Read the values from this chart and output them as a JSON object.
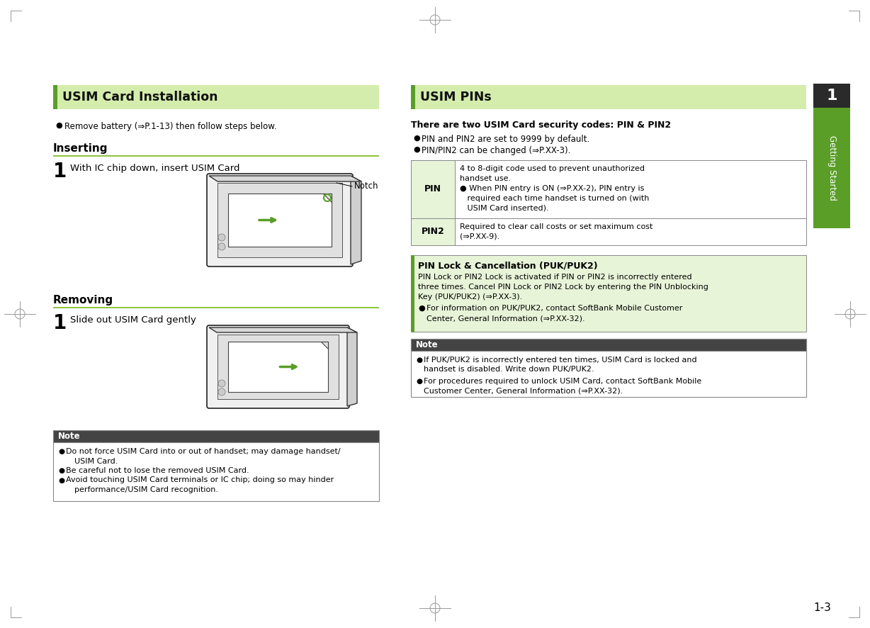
{
  "page_bg": "#ffffff",
  "header_green_light": "#d4edac",
  "header_green_dark": "#5a9e28",
  "note_bg": "#ffffff",
  "note_title_bg": "#4a4a4a",
  "note_title_fg": "#ffffff",
  "table_border": "#888888",
  "pin_row_bg": "#e8f4d8",
  "pin_lock_bg": "#e8f4d8",
  "pin_lock_bar": "#5a9e28",
  "tab_green": "#333333",
  "tab_text": "#ffffff",
  "underline_green": "#8dc63f",
  "text_black": "#000000",
  "left_title": "USIM Card Installation",
  "right_title": "USIM PINs",
  "remove_battery_text": "Remove battery (⇒P.1-13) then follow steps below.",
  "inserting_label": "Inserting",
  "inserting_step": "With IC chip down, insert USIM Card",
  "notch_label": "Notch",
  "removing_label": "Removing",
  "removing_step": "Slide out USIM Card gently",
  "note_title": "Note",
  "note_items": [
    "Do not force USIM Card into or out of handset; may damage handset/\nUSIM Card.",
    "Be careful not to lose the removed USIM Card.",
    "Avoid touching USIM Card terminals or IC chip; doing so may hinder\nperformance/USIM Card recognition."
  ],
  "right_bold_text": "There are two USIM Card security codes: PIN & PIN2",
  "right_bullet1": "PIN and PIN2 are set to 9999 by default.",
  "right_bullet2": "PIN/PIN2 can be changed (⇒P.XX-3).",
  "pin_label": "PIN",
  "pin_desc_line1": "4 to 8-digit code used to prevent unauthorized",
  "pin_desc_line2": "handset use.",
  "pin_desc_line3": "● When PIN entry is ON (⇒P.XX-2), PIN entry is",
  "pin_desc_line4": "   required each time handset is turned on (with",
  "pin_desc_line5": "   USIM Card inserted).",
  "pin2_label": "PIN2",
  "pin2_desc_line1": "Required to clear call costs or set maximum cost",
  "pin2_desc_line2": "(⇒P.XX-9).",
  "pin_lock_title": "PIN Lock & Cancellation (PUK/PUK2)",
  "pin_lock_line1": "PIN Lock or PIN2 Lock is activated if PIN or PIN2 is incorrectly entered",
  "pin_lock_line2": "three times. Cancel PIN Lock or PIN2 Lock by entering the PIN Unblocking",
  "pin_lock_line3": "Key (PUK/PUK2) (⇒P.XX-3).",
  "pin_lock_bullet": "For information on PUK/PUK2, contact SoftBank Mobile Customer\nCenter, General Information (⇒P.XX-32).",
  "right_note_title": "Note",
  "right_note_item1_line1": "If PUK/PUK2 is incorrectly entered ten times, USIM Card is locked and",
  "right_note_item1_line2": "handset is disabled. Write down PUK/PUK2.",
  "right_note_item2_line1": "For procedures required to unlock USIM Card, contact SoftBank Mobile",
  "right_note_item2_line2": "Customer Center, General Information (⇒P.XX-32).",
  "page_number": "1-3",
  "tab_number": "1",
  "tab_label": "Getting Started",
  "figsize": [
    12.28,
    8.86
  ],
  "dpi": 100
}
